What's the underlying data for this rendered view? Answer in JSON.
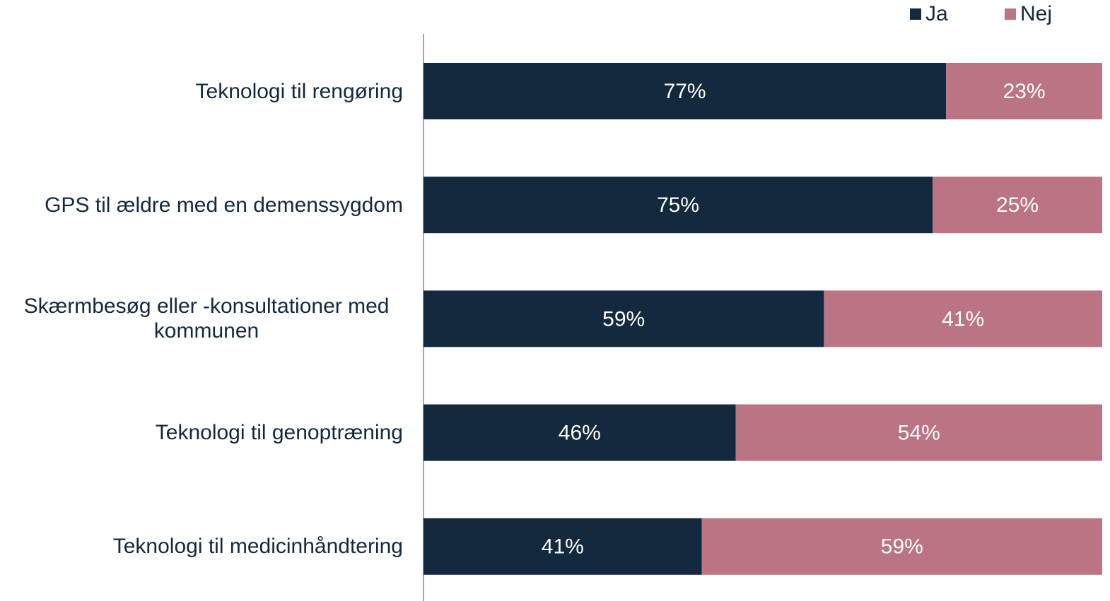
{
  "chart_data": {
    "type": "stacked-barh",
    "categories": [
      "Teknologi til rengøring",
      "GPS til ældre med en demenssygdom",
      "Skærmbesøg eller -konsultationer med kommunen",
      "Teknologi til genoptræning",
      "Teknologi til medicinhåndtering"
    ],
    "series": [
      {
        "name": "Ja",
        "color": "#13293d",
        "values": [
          77,
          75,
          59,
          46,
          41
        ],
        "value_labels": [
          "77%",
          "75%",
          "59%",
          "46%",
          "41%"
        ]
      },
      {
        "name": "Nej",
        "color": "#bb7483",
        "values": [
          23,
          25,
          41,
          54,
          59
        ],
        "value_labels": [
          "23%",
          "25%",
          "41%",
          "54%",
          "59%"
        ]
      }
    ],
    "xlim": [
      0,
      100
    ],
    "legend": "top-right"
  }
}
